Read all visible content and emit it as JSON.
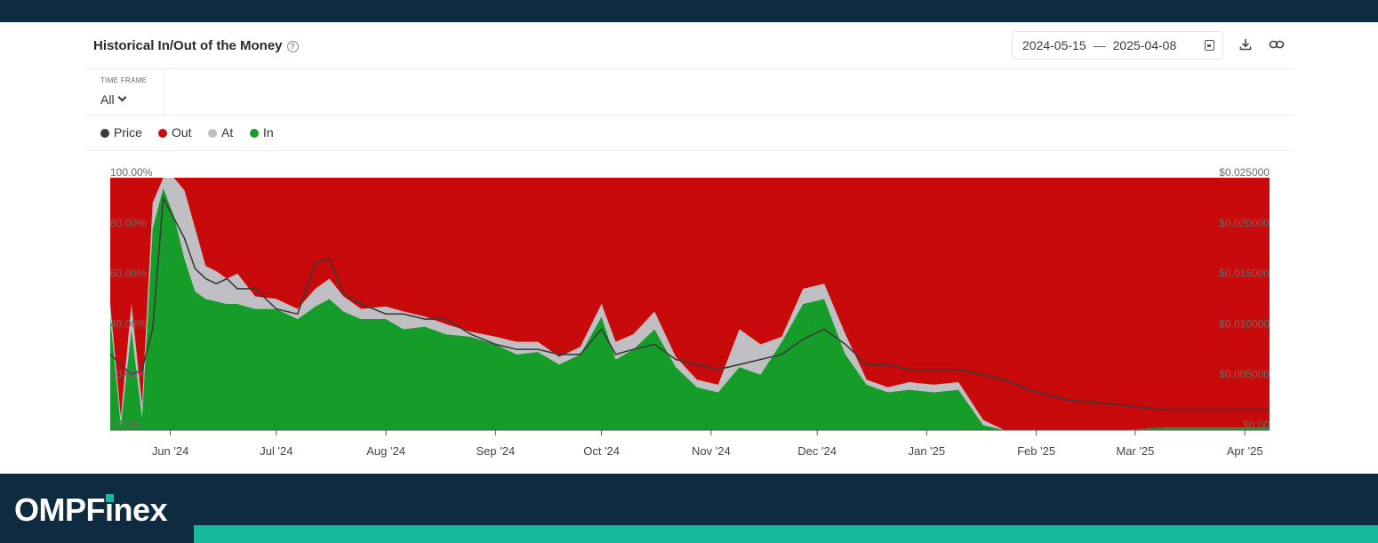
{
  "card": {
    "title": "Historical In/Out of the Money",
    "help_icon": "help-circle-icon",
    "date_from": "2024-05-15",
    "date_sep": "—",
    "date_to": "2025-04-08",
    "timeframe_label": "TIME FRAME",
    "timeframe_value": "All"
  },
  "legend": [
    {
      "label": "Price",
      "color": "#3a3a3a"
    },
    {
      "label": "Out",
      "color": "#c80a0a"
    },
    {
      "label": "At",
      "color": "#bfbfc4"
    },
    {
      "label": "In",
      "color": "#169c28"
    }
  ],
  "footer": {
    "brand_left": "OMPF",
    "brand_i": "i",
    "brand_right": "nex"
  },
  "chart_data": {
    "type": "area",
    "stacked": true,
    "x_start": "2024-05-15",
    "x_end": "2025-04-08",
    "x_ticks": [
      "Jun '24",
      "Jul '24",
      "Aug '24",
      "Sep '24",
      "Oct '24",
      "Nov '24",
      "Dec '24",
      "Jan '25",
      "Feb '25",
      "Mar '25",
      "Apr '25"
    ],
    "x_tick_dates": [
      "2024-06-01",
      "2024-07-01",
      "2024-08-01",
      "2024-09-01",
      "2024-10-01",
      "2024-11-01",
      "2024-12-01",
      "2025-01-01",
      "2025-02-01",
      "2025-03-01",
      "2025-04-01"
    ],
    "y_left_ticks": [
      "0.00%",
      "20.00%",
      "40.00%",
      "60.00%",
      "80.00%",
      "100.00%"
    ],
    "y_left_range": [
      0,
      100
    ],
    "y_right_ticks": [
      "$0.00",
      "$0.005000",
      "$0.010000",
      "$0.015000",
      "$0.020000",
      "$0.025000"
    ],
    "y_right_range": [
      0,
      0.025
    ],
    "dates": [
      "2024-05-15",
      "2024-05-18",
      "2024-05-21",
      "2024-05-24",
      "2024-05-27",
      "2024-05-30",
      "2024-06-02",
      "2024-06-05",
      "2024-06-08",
      "2024-06-11",
      "2024-06-14",
      "2024-06-17",
      "2024-06-20",
      "2024-06-25",
      "2024-07-01",
      "2024-07-07",
      "2024-07-12",
      "2024-07-16",
      "2024-07-20",
      "2024-07-25",
      "2024-08-01",
      "2024-08-06",
      "2024-08-12",
      "2024-08-18",
      "2024-08-25",
      "2024-09-01",
      "2024-09-07",
      "2024-09-13",
      "2024-09-19",
      "2024-09-25",
      "2024-10-01",
      "2024-10-05",
      "2024-10-10",
      "2024-10-16",
      "2024-10-22",
      "2024-10-28",
      "2024-11-03",
      "2024-11-09",
      "2024-11-15",
      "2024-11-21",
      "2024-11-27",
      "2024-12-03",
      "2024-12-09",
      "2024-12-15",
      "2024-12-21",
      "2024-12-27",
      "2025-01-03",
      "2025-01-10",
      "2025-01-17",
      "2025-01-23",
      "2025-01-30",
      "2025-02-10",
      "2025-02-25",
      "2025-03-10",
      "2025-03-25",
      "2025-04-08"
    ],
    "series": [
      {
        "name": "In",
        "color": "#169c28",
        "values": [
          45,
          2,
          40,
          5,
          80,
          96,
          85,
          68,
          55,
          52,
          51,
          50,
          50,
          48,
          48,
          44,
          49,
          52,
          47,
          44,
          44,
          40,
          41,
          38,
          37,
          34,
          30,
          31,
          26,
          30,
          45,
          28,
          32,
          40,
          25,
          17,
          15,
          25,
          22,
          35,
          50,
          52,
          30,
          18,
          15,
          16,
          15,
          16,
          2,
          0,
          0,
          0,
          0,
          1,
          1,
          1
        ]
      },
      {
        "name": "At",
        "color": "#bfbfc4",
        "values": [
          5,
          3,
          10,
          5,
          10,
          4,
          15,
          27,
          25,
          13,
          12,
          10,
          12,
          5,
          4,
          4,
          7,
          8,
          6,
          4,
          5,
          7,
          4,
          4,
          2,
          3,
          5,
          4,
          3,
          3,
          5,
          7,
          6,
          7,
          4,
          3,
          3,
          15,
          12,
          2,
          6,
          6,
          8,
          2,
          2,
          3,
          3,
          3,
          2,
          0,
          0,
          0,
          0,
          0,
          0,
          0
        ]
      },
      {
        "name": "Out",
        "color": "#c80a0a",
        "values": [
          50,
          95,
          50,
          90,
          10,
          0,
          0,
          5,
          20,
          35,
          37,
          40,
          38,
          47,
          48,
          52,
          44,
          40,
          47,
          52,
          51,
          53,
          55,
          58,
          61,
          63,
          65,
          65,
          71,
          67,
          50,
          65,
          62,
          53,
          71,
          80,
          82,
          60,
          66,
          63,
          44,
          42,
          62,
          80,
          83,
          81,
          82,
          81,
          96,
          100,
          100,
          100,
          100,
          99,
          99,
          99
        ]
      }
    ],
    "price": {
      "name": "Price",
      "color": "#3a3a3a",
      "axis": "right",
      "values": [
        0.0075,
        0.0065,
        0.0055,
        0.006,
        0.01,
        0.023,
        0.021,
        0.019,
        0.016,
        0.015,
        0.0145,
        0.015,
        0.014,
        0.014,
        0.012,
        0.0115,
        0.0165,
        0.017,
        0.0135,
        0.0125,
        0.0115,
        0.0115,
        0.011,
        0.011,
        0.0095,
        0.0085,
        0.008,
        0.008,
        0.0075,
        0.0075,
        0.01,
        0.0075,
        0.008,
        0.0085,
        0.007,
        0.0065,
        0.006,
        0.0065,
        0.007,
        0.0075,
        0.009,
        0.01,
        0.0085,
        0.0065,
        0.0065,
        0.006,
        0.006,
        0.006,
        0.0055,
        0.005,
        0.004,
        0.003,
        0.0025,
        0.002,
        0.002,
        0.002
      ]
    }
  }
}
